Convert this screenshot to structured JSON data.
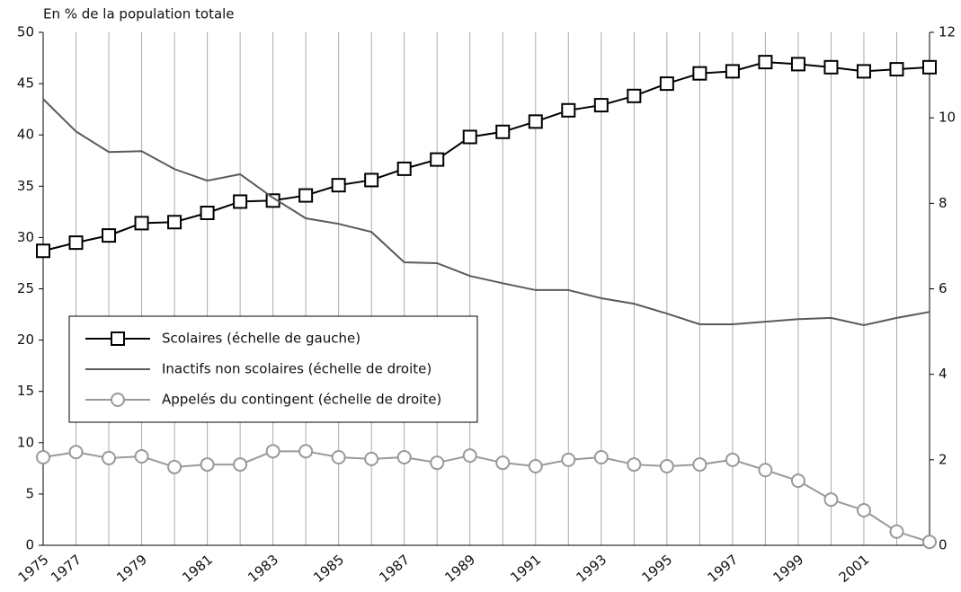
{
  "chart_data": {
    "type": "line",
    "title": "En % de la population totale",
    "categories": [
      "1975",
      "1977",
      null,
      "1979",
      null,
      "1981",
      null,
      "1983",
      null,
      "1985",
      null,
      "1987",
      null,
      "1989",
      null,
      "1991",
      null,
      "1993",
      null,
      "1995",
      null,
      "1997",
      null,
      "1999",
      null,
      "2001",
      null,
      null
    ],
    "ylim": [
      0,
      50
    ],
    "yticks": [
      0,
      5,
      10,
      15,
      20,
      25,
      30,
      35,
      40,
      45,
      50
    ],
    "y2lim": [
      0,
      12
    ],
    "y2ticks": [
      0,
      2,
      4,
      6,
      8,
      10,
      12
    ],
    "grid": "x",
    "legend": "lower-left",
    "series": [
      {
        "name": "Scolaires (échelle de gauche)",
        "color": "#000000",
        "marker": "square",
        "axis": "y",
        "values": [
          28.7,
          29.5,
          30.2,
          31.4,
          31.5,
          32.4,
          33.5,
          33.6,
          34.1,
          35.1,
          35.6,
          36.7,
          37.6,
          39.8,
          40.3,
          41.3,
          42.4,
          42.9,
          43.8,
          45.0,
          46.0,
          46.2,
          47.1,
          46.9,
          46.6,
          46.2,
          46.4,
          46.6
        ]
      },
      {
        "name": "Inactifs non scolaires (échelle de droite)",
        "color": "#5a5a5a",
        "marker": "none",
        "axis": "y2",
        "values": [
          10.44,
          9.68,
          9.2,
          9.22,
          8.8,
          8.53,
          8.68,
          8.13,
          7.65,
          7.52,
          7.33,
          6.62,
          6.6,
          6.3,
          6.13,
          5.97,
          5.97,
          5.78,
          5.65,
          5.42,
          5.17,
          5.17,
          5.23,
          5.29,
          5.32,
          5.15,
          5.32,
          5.46
        ]
      },
      {
        "name": "Appelés du contingent (échelle de droite)",
        "color": "#999999",
        "marker": "circle",
        "axis": "y2",
        "values": [
          2.06,
          2.18,
          2.04,
          2.08,
          1.83,
          1.89,
          1.89,
          2.2,
          2.2,
          2.06,
          2.02,
          2.06,
          1.93,
          2.1,
          1.93,
          1.85,
          2.0,
          2.06,
          1.89,
          1.85,
          1.89,
          2.0,
          1.76,
          1.51,
          1.07,
          0.82,
          0.32,
          0.08
        ]
      }
    ]
  }
}
